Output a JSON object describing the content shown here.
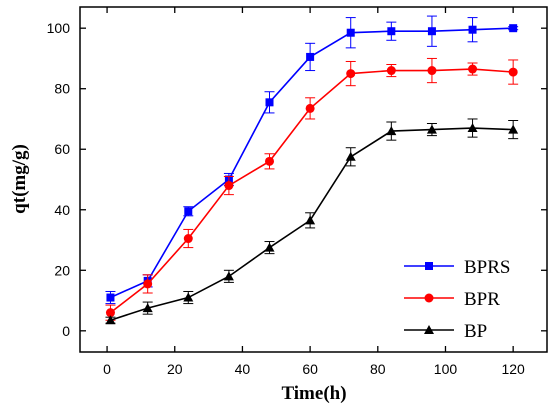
{
  "chart_data": {
    "type": "line",
    "title": "",
    "xlabel": "Time(h)",
    "ylabel": "qt(mg/g)",
    "xlim": [
      -8,
      130
    ],
    "ylim": [
      -7,
      107
    ],
    "x_ticks": [
      0,
      20,
      40,
      60,
      80,
      100,
      120
    ],
    "y_ticks": [
      0,
      20,
      40,
      60,
      80,
      100
    ],
    "x": [
      1,
      12,
      24,
      36,
      48,
      60,
      72,
      84,
      96,
      108,
      120
    ],
    "grid": false,
    "legend_position": "bottom-right",
    "series": [
      {
        "name": "BPRS",
        "color": "#0000ff",
        "marker": "square",
        "values": [
          11,
          16.5,
          39.5,
          50,
          75.5,
          90.5,
          98.5,
          99,
          99,
          99.5,
          100
        ],
        "errors": [
          2,
          2,
          1.5,
          2,
          3.5,
          4.5,
          5,
          3,
          5,
          4,
          0.5
        ]
      },
      {
        "name": "BPR",
        "color": "#ff0000",
        "marker": "circle",
        "values": [
          6,
          15.5,
          30.5,
          48,
          56,
          73.5,
          85,
          86,
          86,
          86.5,
          85.5
        ],
        "errors": [
          2.5,
          3,
          3,
          3,
          2.5,
          3.5,
          4,
          2,
          4,
          2,
          4
        ]
      },
      {
        "name": "BP",
        "color": "#000000",
        "marker": "triangle",
        "values": [
          3.5,
          7.5,
          11,
          18,
          27.5,
          36.5,
          57.5,
          66,
          66.5,
          67,
          66.5
        ],
        "errors": [
          1,
          2,
          2,
          2,
          2,
          2.5,
          3,
          3,
          2,
          3,
          3
        ]
      }
    ]
  }
}
